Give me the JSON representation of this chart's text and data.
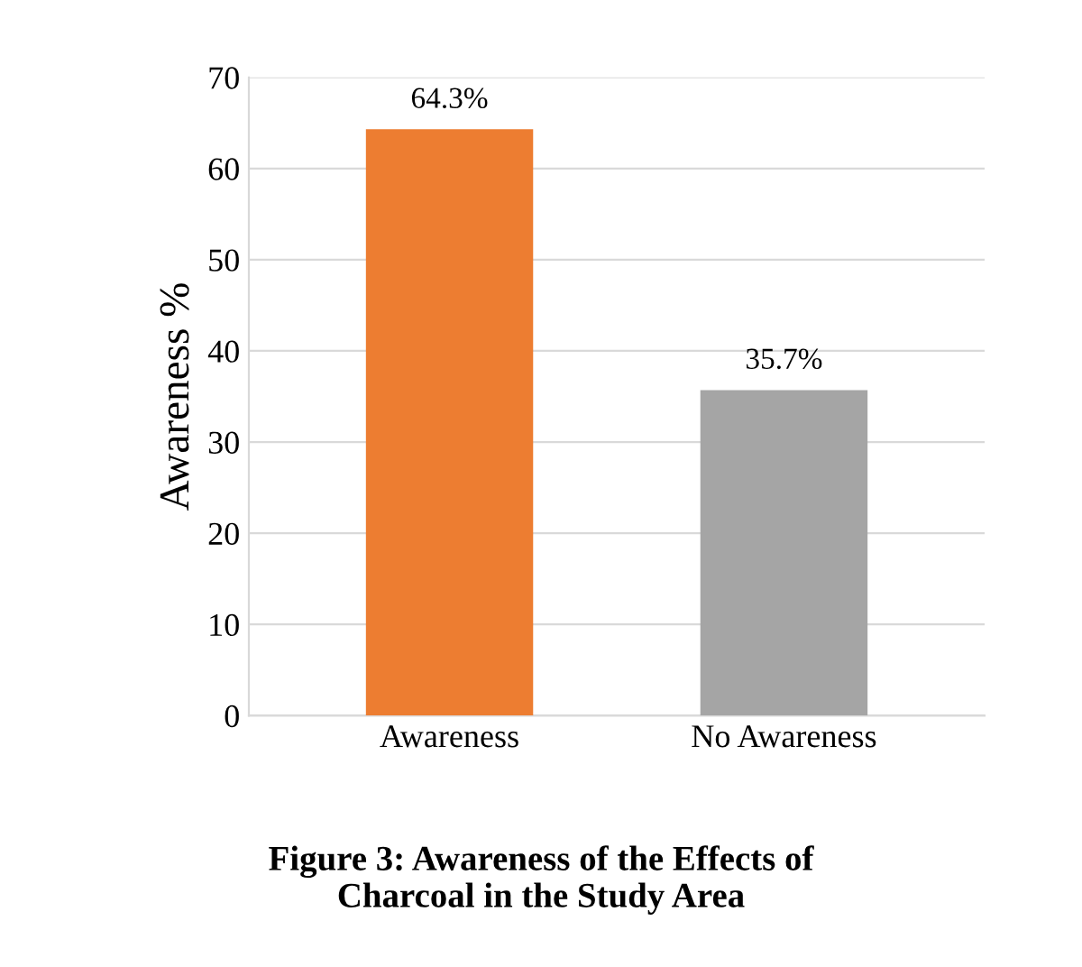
{
  "chart_data": {
    "type": "bar",
    "title": "Figure 3: Awareness of the Effects of\nCharcoal in the Study Area",
    "ylabel": "Awareness %",
    "categories": [
      "Awareness",
      "No Awareness"
    ],
    "values": [
      64.3,
      35.7
    ],
    "colors": [
      "#ed7d31",
      "#a5a5a5"
    ],
    "value_labels": [
      "64.3%",
      "35.7%"
    ],
    "ylim": [
      0,
      70
    ],
    "yticks": [
      0,
      10,
      20,
      30,
      40,
      50,
      60,
      70
    ],
    "grid": "y"
  }
}
